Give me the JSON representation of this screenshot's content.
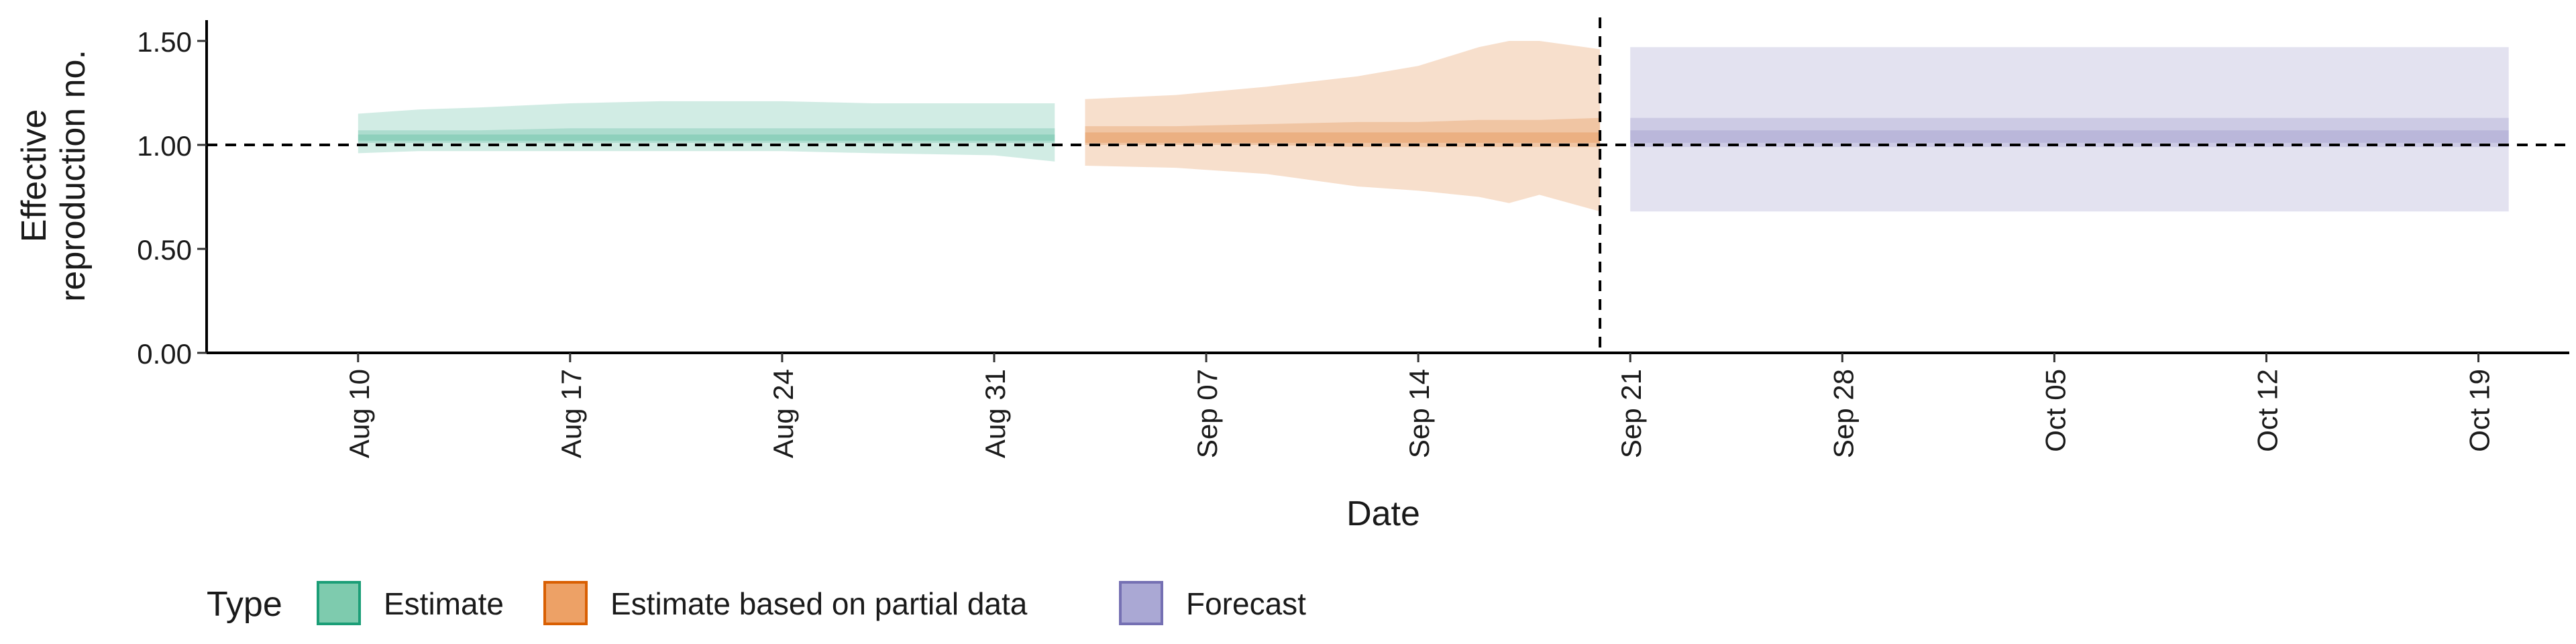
{
  "chart_data": {
    "type": "area",
    "xlabel": "Date",
    "ylabel_lines": [
      "Effective",
      "reproduction no."
    ],
    "ylim": [
      0,
      1.6
    ],
    "y_ticks": [
      {
        "value": 0.0,
        "label": "0.00"
      },
      {
        "value": 0.5,
        "label": "0.50"
      },
      {
        "value": 1.0,
        "label": "1.00"
      },
      {
        "value": 1.5,
        "label": "1.50"
      }
    ],
    "xlim": [
      "2020-08-05",
      "2020-10-22"
    ],
    "x_ticks": [
      {
        "date": "2020-08-10",
        "label": "Aug 10"
      },
      {
        "date": "2020-08-17",
        "label": "Aug 17"
      },
      {
        "date": "2020-08-24",
        "label": "Aug 24"
      },
      {
        "date": "2020-08-31",
        "label": "Aug 31"
      },
      {
        "date": "2020-09-07",
        "label": "Sep 07"
      },
      {
        "date": "2020-09-14",
        "label": "Sep 14"
      },
      {
        "date": "2020-09-21",
        "label": "Sep 21"
      },
      {
        "date": "2020-09-28",
        "label": "Sep 28"
      },
      {
        "date": "2020-10-05",
        "label": "Oct 05"
      },
      {
        "date": "2020-10-12",
        "label": "Oct 12"
      },
      {
        "date": "2020-10-19",
        "label": "Oct 19"
      }
    ],
    "reference_line_y": 1.0,
    "reference_line_x": "2020-09-20",
    "legend": {
      "title": "Type",
      "position": "bottom-left",
      "items": [
        {
          "label": "Estimate",
          "fill": "#7ecbae",
          "stroke": "#1b9e77"
        },
        {
          "label": "Estimate based on partial data",
          "fill": "#eda166",
          "stroke": "#d95f02"
        },
        {
          "label": "Forecast",
          "fill": "#aaa8d4",
          "stroke": "#7570b3"
        }
      ]
    },
    "series": [
      {
        "name": "Estimate",
        "color": "#1b9e77",
        "x": [
          "2020-08-10",
          "2020-08-12",
          "2020-08-14",
          "2020-08-17",
          "2020-08-20",
          "2020-08-24",
          "2020-08-27",
          "2020-08-31",
          "2020-09-02"
        ],
        "outer_lower": [
          0.96,
          0.97,
          0.97,
          0.97,
          0.97,
          0.97,
          0.96,
          0.95,
          0.92
        ],
        "outer_upper": [
          1.15,
          1.17,
          1.18,
          1.2,
          1.21,
          1.21,
          1.2,
          1.2,
          1.2
        ],
        "inner_lower": [
          1.01,
          1.01,
          1.01,
          1.01,
          1.01,
          1.01,
          1.01,
          1.01,
          1.01
        ],
        "inner_upper": [
          1.07,
          1.07,
          1.07,
          1.08,
          1.08,
          1.08,
          1.08,
          1.08,
          1.08
        ],
        "core_lower": [
          1.02,
          1.02,
          1.02,
          1.02,
          1.02,
          1.02,
          1.02,
          1.02,
          1.02
        ],
        "core_upper": [
          1.05,
          1.05,
          1.05,
          1.05,
          1.05,
          1.05,
          1.05,
          1.05,
          1.05
        ]
      },
      {
        "name": "Estimate based on partial data",
        "color": "#d95f02",
        "x": [
          "2020-09-03",
          "2020-09-06",
          "2020-09-09",
          "2020-09-12",
          "2020-09-14",
          "2020-09-16",
          "2020-09-17",
          "2020-09-18",
          "2020-09-20"
        ],
        "outer_lower": [
          0.9,
          0.89,
          0.86,
          0.8,
          0.78,
          0.75,
          0.72,
          0.76,
          0.68
        ],
        "outer_upper": [
          1.22,
          1.24,
          1.28,
          1.33,
          1.38,
          1.47,
          1.5,
          1.5,
          1.46
        ],
        "inner_lower": [
          1.0,
          1.0,
          1.0,
          0.99,
          0.99,
          0.99,
          0.99,
          0.99,
          0.99
        ],
        "inner_upper": [
          1.09,
          1.09,
          1.1,
          1.11,
          1.11,
          1.12,
          1.12,
          1.12,
          1.13
        ],
        "core_lower": [
          1.01,
          1.01,
          1.01,
          1.01,
          1.01,
          1.01,
          1.01,
          1.01,
          1.01
        ],
        "core_upper": [
          1.06,
          1.06,
          1.06,
          1.06,
          1.06,
          1.06,
          1.06,
          1.06,
          1.06
        ]
      },
      {
        "name": "Forecast",
        "color": "#7570b3",
        "x": [
          "2020-09-21",
          "2020-10-20"
        ],
        "outer_lower": [
          0.68,
          0.68
        ],
        "outer_upper": [
          1.47,
          1.47
        ],
        "inner_lower": [
          0.99,
          0.99
        ],
        "inner_upper": [
          1.13,
          1.13
        ],
        "core_lower": [
          1.01,
          1.01
        ],
        "core_upper": [
          1.07,
          1.07
        ]
      }
    ]
  }
}
